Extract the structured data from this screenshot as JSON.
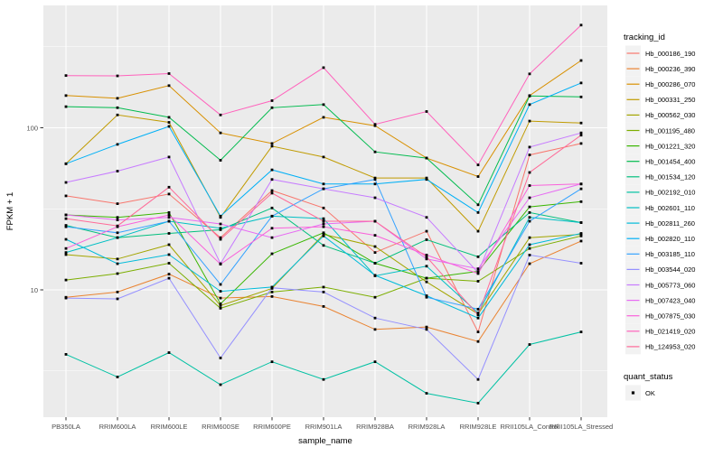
{
  "colors": {
    "panel_bg": "#EBEBEB",
    "grid": "#FFFFFF",
    "axis_text": "#4D4D4D",
    "title_text": "#000000",
    "point": "#000000",
    "legend_key_bg": "#F2F2F2"
  },
  "chart_data": {
    "type": "line",
    "title": "",
    "xlabel": "sample_name",
    "ylabel": "FPKM + 1",
    "y_scale": "log10",
    "ylim": [
      1.6,
      570
    ],
    "y_major_ticks": [
      10,
      100
    ],
    "y_major_tick_labels": [
      "10",
      "100"
    ],
    "y_minor_ticks": [
      3.1623,
      31.623,
      316.23
    ],
    "grid": true,
    "legend_position": "right",
    "legend_title": "tracking_id",
    "legend2_title": "quant_status",
    "legend2_items": [
      {
        "label": "OK",
        "shape": "black-square"
      }
    ],
    "point_shape": "black-square",
    "categories": [
      "PB350LA",
      "RRIM600LA",
      "RRIM600LE",
      "RRIM600SE",
      "RRIM600PE",
      "RRIM901LA",
      "RRIM928BA",
      "RRIM928LA",
      "RRIM928LE",
      "RRII105LA_Control",
      "RRII105LA_Stressed"
    ],
    "series": [
      {
        "name": "Hb_000186_190",
        "color": "#F8766D",
        "values": [
          38,
          34,
          39,
          21,
          41,
          32,
          17,
          23,
          5.5,
          68,
          80
        ]
      },
      {
        "name": "Hb_000236_390",
        "color": "#EA8331",
        "values": [
          9,
          9.7,
          12.5,
          8.9,
          9.1,
          7.9,
          5.7,
          5.9,
          4.8,
          14.5,
          20
        ]
      },
      {
        "name": "Hb_000286_070",
        "color": "#D89000",
        "values": [
          158,
          152,
          182,
          93,
          80,
          116,
          103,
          65,
          50,
          158,
          260
        ]
      },
      {
        "name": "Hb_000331_250",
        "color": "#C09B00",
        "values": [
          60,
          120,
          108,
          28,
          77,
          66,
          49,
          49,
          23,
          110,
          107
        ]
      },
      {
        "name": "Hb_000562_030",
        "color": "#A3A500",
        "values": [
          16.5,
          15.5,
          19,
          8,
          10.2,
          22,
          18.5,
          11.2,
          7.1,
          21,
          22
        ]
      },
      {
        "name": "Hb_001195_480",
        "color": "#7CAE00",
        "values": [
          11.5,
          12.6,
          14.6,
          7.7,
          9.7,
          10.4,
          9,
          11.8,
          11.3,
          18,
          21.5
        ]
      },
      {
        "name": "Hb_001221_320",
        "color": "#39B600",
        "values": [
          29,
          28,
          30,
          8.2,
          16.7,
          22.5,
          14.6,
          11.8,
          13,
          32.5,
          35
        ]
      },
      {
        "name": "Hb_001454_400",
        "color": "#00BB4E",
        "values": [
          135,
          133,
          116,
          63,
          133,
          139,
          71,
          65,
          33.5,
          157,
          155
        ]
      },
      {
        "name": "Hb_001534_120",
        "color": "#00BF7D",
        "values": [
          25,
          21,
          22.3,
          23.5,
          32,
          18.8,
          14.6,
          20.4,
          16,
          30,
          26
        ]
      },
      {
        "name": "Hb_002192_010",
        "color": "#00C1A3",
        "values": [
          4,
          2.9,
          4.1,
          2.6,
          3.6,
          2.8,
          3.6,
          2.3,
          2,
          4.6,
          5.5
        ]
      },
      {
        "name": "Hb_002601_110",
        "color": "#00BFC4",
        "values": [
          17,
          21,
          26.5,
          24,
          28.5,
          27.5,
          12.2,
          14,
          7.2,
          28,
          26
        ]
      },
      {
        "name": "Hb_002811_260",
        "color": "#00BBDA",
        "values": [
          20.5,
          14.5,
          16.5,
          9.8,
          10.4,
          21.5,
          12.3,
          9.2,
          6.7,
          19,
          22.3
        ]
      },
      {
        "name": "Hb_002820_110",
        "color": "#00B0F6",
        "values": [
          60,
          79,
          102,
          28.5,
          55,
          45,
          45,
          48,
          30,
          139,
          189
        ]
      },
      {
        "name": "Hb_003185_110",
        "color": "#35A2FF",
        "values": [
          24.5,
          22.5,
          26.5,
          10.8,
          28.5,
          42,
          48,
          9,
          7.6,
          26.5,
          42
        ]
      },
      {
        "name": "Hb_003544_020",
        "color": "#9590FF",
        "values": [
          8.9,
          8.8,
          11.8,
          3.8,
          10.3,
          9.7,
          6.7,
          5.7,
          2.8,
          16.4,
          14.6
        ]
      },
      {
        "name": "Hb_005773_060",
        "color": "#C77CFF",
        "values": [
          46,
          54,
          66,
          14.5,
          48,
          42,
          37,
          28,
          12.8,
          76,
          93
        ]
      },
      {
        "name": "Hb_007423_040",
        "color": "#E76BF3",
        "values": [
          29,
          27,
          28,
          25.5,
          21,
          25.5,
          26.5,
          15.5,
          13.5,
          37,
          45
        ]
      },
      {
        "name": "Hb_007875_030",
        "color": "#FA62DB",
        "values": [
          18,
          24.5,
          29,
          14.4,
          24,
          24.5,
          21.7,
          16.4,
          12.6,
          44,
          45
        ]
      },
      {
        "name": "Hb_021419_020",
        "color": "#FF62BC",
        "values": [
          210,
          209,
          216,
          120,
          147,
          235,
          105,
          126,
          59,
          215,
          430
        ]
      },
      {
        "name": "Hb_124953_020",
        "color": "#FF6A98",
        "values": [
          27.5,
          24.8,
          43,
          20.5,
          39.5,
          26.5,
          26.5,
          16,
          7,
          53,
          90
        ]
      }
    ]
  }
}
